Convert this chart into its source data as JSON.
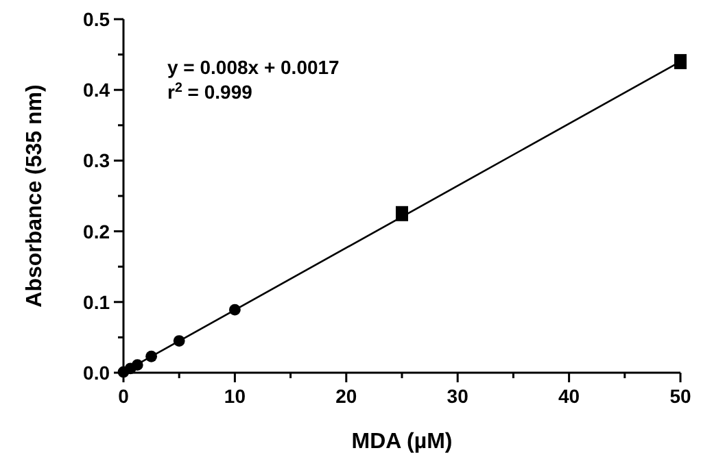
{
  "chart_data": {
    "type": "scatter",
    "xlabel": "MDA (µM)",
    "ylabel": "Absorbance (535 nm)",
    "xlim": [
      0,
      50
    ],
    "ylim": [
      0,
      0.5
    ],
    "xticks": [
      0,
      {
        "value": 5,
        "label": null
      },
      10,
      {
        "value": 15,
        "label": null
      },
      20,
      {
        "value": 25,
        "label": null
      },
      30,
      {
        "value": 35,
        "label": null
      },
      40,
      {
        "value": 45,
        "label": null
      },
      50
    ],
    "yticks": [
      {
        "value": 0,
        "label": "0.0"
      },
      {
        "value": 0.05,
        "label": null
      },
      0.1,
      {
        "value": 0.15,
        "label": null
      },
      0.2,
      {
        "value": 0.25,
        "label": null
      },
      0.3,
      {
        "value": 0.35,
        "label": null
      },
      0.4,
      {
        "value": 0.45,
        "label": null
      },
      0.5
    ],
    "grid": false,
    "annotations": [
      "y = 0.008x + 0.0017",
      "r$^{2}$ = 0.999"
    ],
    "series": [
      {
        "type": "line",
        "color": "#000000",
        "marker": "none",
        "line_style": "solid",
        "x": [
          0,
          50
        ],
        "values": [
          0.001,
          0.44
        ]
      },
      {
        "color": "#000000",
        "marker": "circle",
        "x": [
          0,
          0.625,
          1.25,
          2.5,
          5,
          10
        ],
        "values": [
          0.001,
          0.006,
          0.011,
          0.023,
          0.045,
          0.089
        ]
      },
      {
        "color": "#000000",
        "marker": "square",
        "x": [
          25,
          50
        ],
        "values": [
          0.225,
          0.44
        ]
      }
    ]
  }
}
